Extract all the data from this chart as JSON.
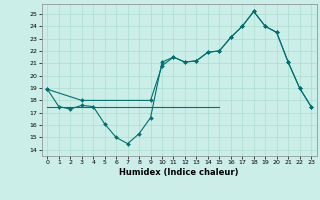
{
  "xlabel": "Humidex (Indice chaleur)",
  "xlim": [
    -0.5,
    23.5
  ],
  "ylim": [
    13.5,
    25.8
  ],
  "yticks": [
    14,
    15,
    16,
    17,
    18,
    19,
    20,
    21,
    22,
    23,
    24,
    25
  ],
  "xticks": [
    0,
    1,
    2,
    3,
    4,
    5,
    6,
    7,
    8,
    9,
    10,
    11,
    12,
    13,
    14,
    15,
    16,
    17,
    18,
    19,
    20,
    21,
    22,
    23
  ],
  "bg_color": "#cceee8",
  "grid_color": "#aaddcc",
  "line_color": "#007070",
  "series1_x": [
    0,
    1,
    2,
    3,
    4,
    5,
    6,
    7,
    8,
    9,
    10,
    11,
    12,
    13,
    14,
    15,
    16,
    17,
    18,
    19,
    20,
    21,
    22,
    23
  ],
  "series1_y": [
    18.9,
    17.5,
    17.3,
    17.6,
    17.5,
    16.1,
    15.0,
    14.5,
    15.3,
    16.6,
    21.1,
    21.5,
    21.1,
    21.2,
    21.9,
    22.0,
    23.1,
    24.0,
    25.2,
    24.0,
    23.5,
    21.1,
    19.0,
    17.5
  ],
  "series2_x": [
    0,
    3,
    9,
    10,
    11,
    12,
    13,
    14,
    15,
    16,
    17,
    18,
    19,
    20,
    21,
    22,
    23
  ],
  "series2_y": [
    18.9,
    18.0,
    18.0,
    20.8,
    21.5,
    21.1,
    21.2,
    21.9,
    22.0,
    23.1,
    24.0,
    25.2,
    24.0,
    23.5,
    21.1,
    19.0,
    17.5
  ],
  "series3_x": [
    0,
    15
  ],
  "series3_y": [
    17.5,
    17.5
  ]
}
